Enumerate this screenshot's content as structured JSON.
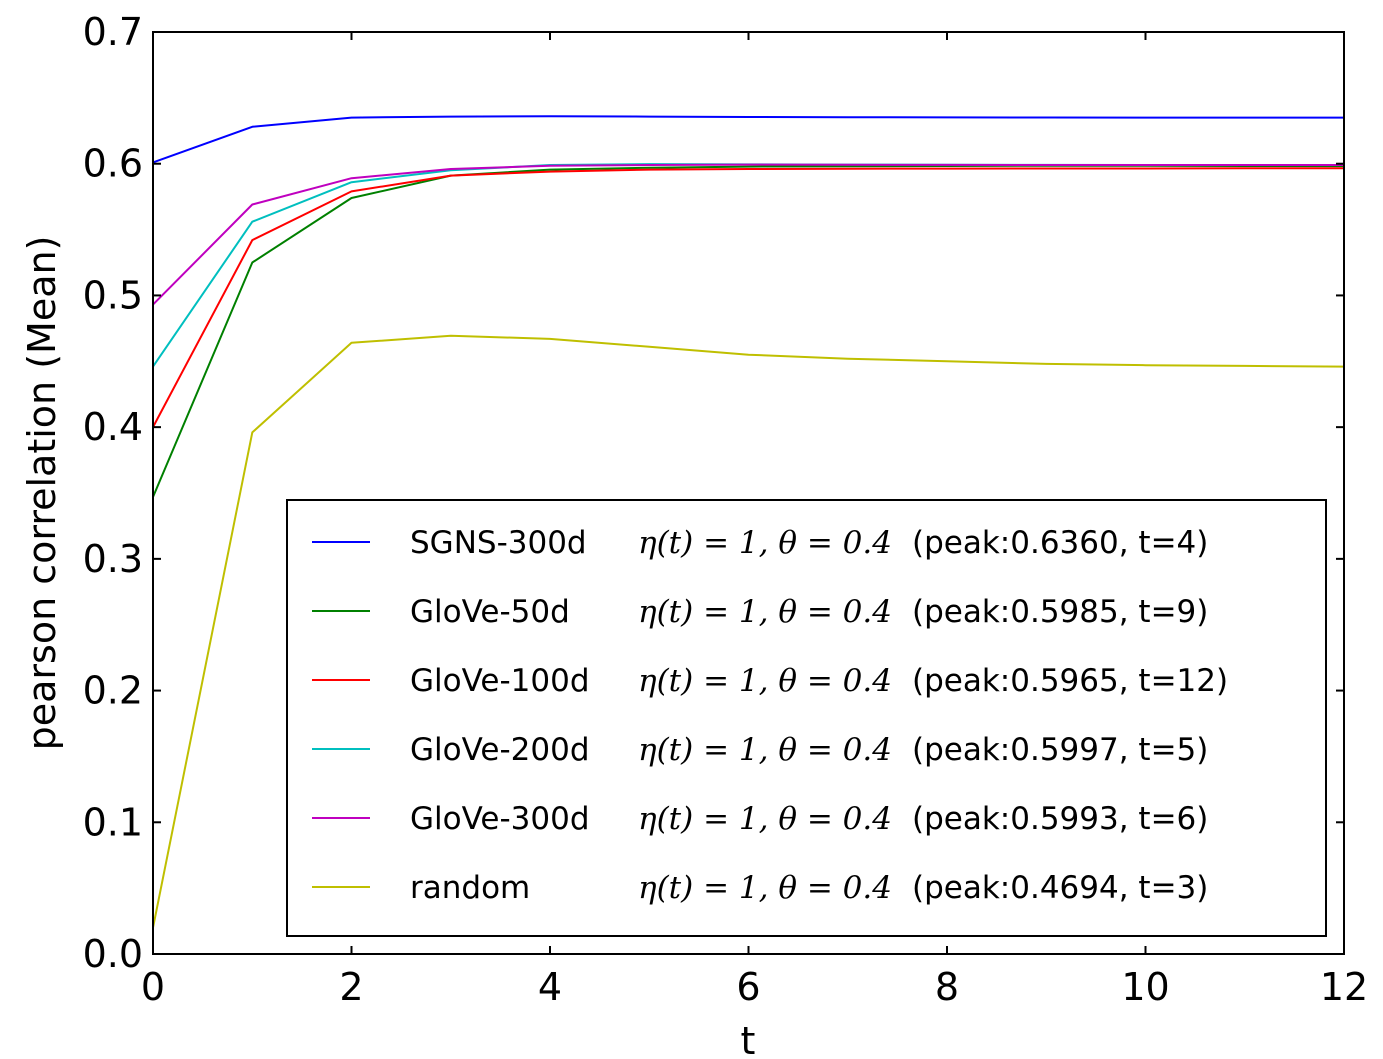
{
  "chart_data": {
    "type": "line",
    "xlabel": "t",
    "ylabel": "pearson correlation (Mean)",
    "xlim": [
      0,
      12
    ],
    "ylim": [
      0.0,
      0.7
    ],
    "xticks": [
      "0",
      "2",
      "4",
      "6",
      "8",
      "10",
      "12"
    ],
    "yticks": [
      "0.0",
      "0.1",
      "0.2",
      "0.3",
      "0.4",
      "0.5",
      "0.6",
      "0.7"
    ],
    "grid": false,
    "legend_position": "lower-right",
    "x": [
      0,
      1,
      2,
      3,
      4,
      5,
      6,
      7,
      8,
      9,
      10,
      11,
      12
    ],
    "series": [
      {
        "name": "SGNS-300d",
        "params": "η(t) = 1, θ = 0.4",
        "peak": "(peak:0.6360, t=4)",
        "color": "#0000ff",
        "values": [
          0.601,
          0.628,
          0.635,
          0.6358,
          0.636,
          0.6358,
          0.6355,
          0.6353,
          0.6352,
          0.6351,
          0.635,
          0.635,
          0.635
        ]
      },
      {
        "name": "GloVe-50d",
        "params": "η(t) = 1, θ = 0.4",
        "peak": "(peak:0.5985, t=9)",
        "color": "#008000",
        "values": [
          0.347,
          0.525,
          0.574,
          0.591,
          0.5955,
          0.597,
          0.5978,
          0.5981,
          0.5983,
          0.5985,
          0.5984,
          0.5983,
          0.5982
        ]
      },
      {
        "name": "GloVe-100d",
        "params": "η(t) = 1, θ = 0.4",
        "peak": "(peak:0.5965, t=12)",
        "color": "#ff0000",
        "values": [
          0.4,
          0.542,
          0.579,
          0.591,
          0.594,
          0.5955,
          0.596,
          0.5962,
          0.5963,
          0.5964,
          0.5964,
          0.5965,
          0.5965
        ]
      },
      {
        "name": "GloVe-200d",
        "params": "η(t) = 1, θ = 0.4",
        "peak": "(peak:0.5997, t=5)",
        "color": "#00bfbf",
        "values": [
          0.446,
          0.556,
          0.586,
          0.595,
          0.599,
          0.5997,
          0.5995,
          0.5993,
          0.5992,
          0.5991,
          0.599,
          0.599,
          0.599
        ]
      },
      {
        "name": "GloVe-300d",
        "params": "η(t) = 1, θ = 0.4",
        "peak": "(peak:0.5993, t=6)",
        "color": "#bf00bf",
        "values": [
          0.493,
          0.569,
          0.589,
          0.596,
          0.5985,
          0.599,
          0.5993,
          0.5992,
          0.5991,
          0.599,
          0.599,
          0.599,
          0.599
        ]
      },
      {
        "name": "random",
        "params": "η(t) = 1, θ = 0.4",
        "peak": "(peak:0.4694, t=3)",
        "color": "#bfbf00",
        "values": [
          0.02,
          0.396,
          0.464,
          0.4694,
          0.467,
          0.461,
          0.455,
          0.452,
          0.45,
          0.448,
          0.447,
          0.4465,
          0.446
        ]
      }
    ]
  }
}
